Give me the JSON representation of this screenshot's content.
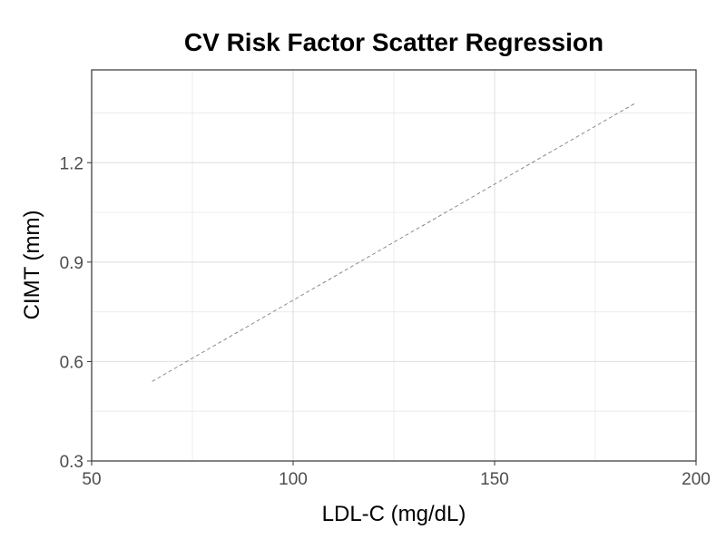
{
  "chart_data": {
    "type": "line",
    "title": "CV Risk Factor Scatter Regression",
    "xlabel": "LDL-C (mg/dL)",
    "ylabel": "CIMT (mm)",
    "xlim": [
      50,
      200
    ],
    "ylim": [
      0.3,
      1.48
    ],
    "x_ticks": [
      50,
      100,
      150,
      200
    ],
    "x_tick_labels": [
      "50",
      "100",
      "150",
      "200"
    ],
    "y_ticks": [
      0.3,
      0.6,
      0.9,
      1.2
    ],
    "y_tick_labels": [
      "0.3",
      "0.6",
      "0.9",
      "1.2"
    ],
    "grid": true,
    "legend": "none",
    "series": [
      {
        "style": "dashed",
        "color": "#7f7f7f",
        "x": [
          65,
          185
        ],
        "y": [
          0.54,
          1.38
        ]
      }
    ]
  }
}
